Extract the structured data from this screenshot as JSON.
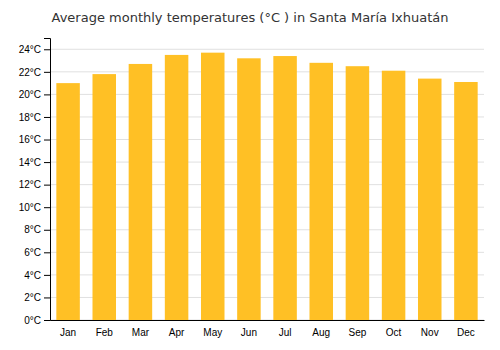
{
  "chart_data": {
    "type": "bar",
    "title": "Average monthly temperatures (°C ) in Santa María Ixhuatán",
    "categories": [
      "Jan",
      "Feb",
      "Mar",
      "Apr",
      "May",
      "Jun",
      "Jul",
      "Aug",
      "Sep",
      "Oct",
      "Nov",
      "Dec"
    ],
    "values": [
      21.0,
      21.8,
      22.7,
      23.5,
      23.7,
      23.2,
      23.4,
      22.8,
      22.5,
      22.1,
      21.4,
      21.1
    ],
    "color": "#FFC025",
    "ylim": [
      0,
      25
    ],
    "yticks": [
      {
        "value": 0,
        "label": "0°C"
      },
      {
        "value": 2,
        "label": "2°C"
      },
      {
        "value": 4,
        "label": "4°C"
      },
      {
        "value": 6,
        "label": "6°C"
      },
      {
        "value": 8,
        "label": "8°C"
      },
      {
        "value": 10,
        "label": "10°C"
      },
      {
        "value": 12,
        "label": "12°C"
      },
      {
        "value": 14,
        "label": "14°C"
      },
      {
        "value": 16,
        "label": "16°C"
      },
      {
        "value": 18,
        "label": "18°C"
      },
      {
        "value": 20,
        "label": "20°C"
      },
      {
        "value": 22,
        "label": "22°C"
      },
      {
        "value": 24,
        "label": "24°C"
      }
    ],
    "grid": true
  }
}
